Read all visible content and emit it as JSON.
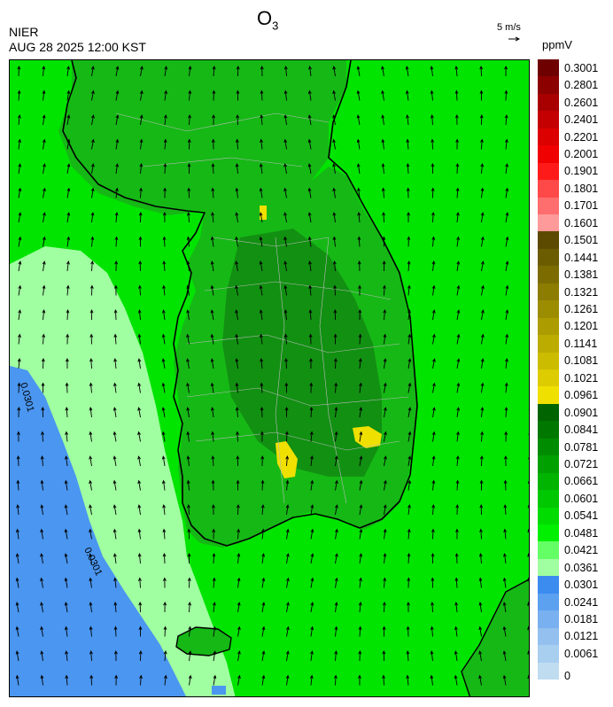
{
  "header": {
    "agency": "NIER",
    "datetime": "AUG 28 2025 12:00 KST",
    "species": "O",
    "species_sub": "3",
    "wind_reference": "5 m/s",
    "unit": "ppmV"
  },
  "legend": {
    "levels": [
      {
        "label": "0.3001",
        "color": "#6e0000"
      },
      {
        "label": "0.2801",
        "color": "#8c0000"
      },
      {
        "label": "0.2601",
        "color": "#a80000"
      },
      {
        "label": "0.2401",
        "color": "#c40000"
      },
      {
        "label": "0.2201",
        "color": "#dc0000"
      },
      {
        "label": "0.2001",
        "color": "#f00000"
      },
      {
        "label": "0.1901",
        "color": "#ff1a1a"
      },
      {
        "label": "0.1801",
        "color": "#ff4848"
      },
      {
        "label": "0.1701",
        "color": "#ff6e6e"
      },
      {
        "label": "0.1601",
        "color": "#ff9a9a"
      },
      {
        "label": "0.1501",
        "color": "#5c4a00"
      },
      {
        "label": "0.1441",
        "color": "#6c5c00"
      },
      {
        "label": "0.1381",
        "color": "#7c6c00"
      },
      {
        "label": "0.1321",
        "color": "#8c7c00"
      },
      {
        "label": "0.1261",
        "color": "#9c8c00"
      },
      {
        "label": "0.1201",
        "color": "#ac9c00"
      },
      {
        "label": "0.1141",
        "color": "#bcac00"
      },
      {
        "label": "0.1081",
        "color": "#ccbc00"
      },
      {
        "label": "0.1021",
        "color": "#dccc00"
      },
      {
        "label": "0.0961",
        "color": "#f0e000"
      },
      {
        "label": "0.0901",
        "color": "#006400"
      },
      {
        "label": "0.0841",
        "color": "#007800"
      },
      {
        "label": "0.0781",
        "color": "#008c00"
      },
      {
        "label": "0.0721",
        "color": "#00a000"
      },
      {
        "label": "0.0661",
        "color": "#00b400"
      },
      {
        "label": "0.0601",
        "color": "#00c800"
      },
      {
        "label": "0.0541",
        "color": "#00dc00"
      },
      {
        "label": "0.0481",
        "color": "#00f000"
      },
      {
        "label": "0.0421",
        "color": "#64ff64"
      },
      {
        "label": "0.0361",
        "color": "#a0ffa0"
      },
      {
        "label": "0.0301",
        "color": "#3c8cf0"
      },
      {
        "label": "0.0241",
        "color": "#5ca0f0"
      },
      {
        "label": "0.0181",
        "color": "#78b0f0"
      },
      {
        "label": "0.0121",
        "color": "#94c0f0"
      },
      {
        "label": "0.0061",
        "color": "#a8cef0"
      },
      {
        "label": "0",
        "color": "#c0dcf0"
      }
    ]
  },
  "map": {
    "contour_labels": [
      "0.0301",
      "0.0301"
    ],
    "wind_direction": "southerly",
    "colors": {
      "ocean_high": "#00e400",
      "land": "#16b816",
      "land_dark": "#129012",
      "west_sea": "#a0ffa0",
      "low_sea": "#4a96f0",
      "hotspot": "#f0e000",
      "coast": "#000000",
      "border": "#bbbbbb"
    },
    "hotspots": [
      "seoul",
      "gwangyang",
      "ulsan"
    ]
  }
}
